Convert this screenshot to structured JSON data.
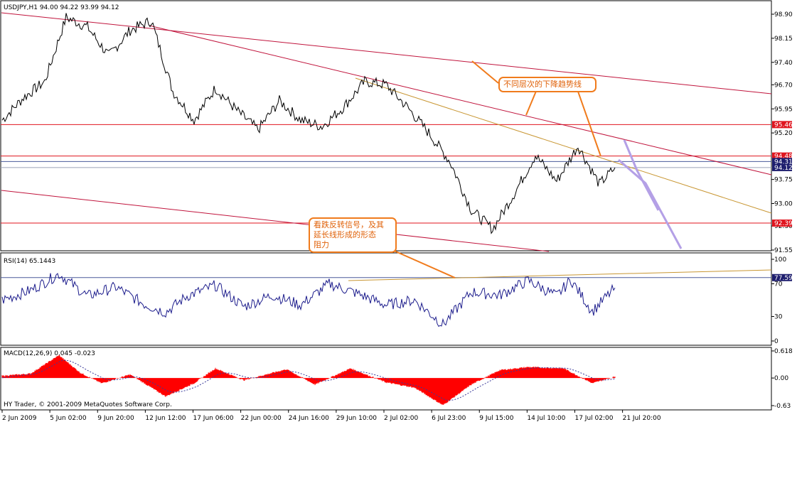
{
  "window": {
    "symbol_title": "USDJPY,H1  94.00 94.22 93.99 94.12",
    "copyright": "HY Trader, © 2001-2009 MetaQuotes Software Corp."
  },
  "annotations": {
    "downtrend_lines": "不同层次的下降趋势线",
    "reversal_signal_line1": "看跌反转信号，及其",
    "reversal_signal_line2": "延长线形成的形态",
    "reversal_signal_line3": "阻力"
  },
  "colors": {
    "price_line": "#000000",
    "trendline": "#c0143c",
    "trendline_tan": "#c89632",
    "horizontal_level": "#e0141e",
    "current_price_line": "#4a5a9a",
    "rsi_line": "#1c1c8c",
    "macd_hist": "#ff0000",
    "macd_signal": "#3a3a9a",
    "callout_orange": "#f07b1c",
    "projection_arrow": "#b4a0e6",
    "price_tag_red": "#e0141e",
    "price_tag_navy": "#1e1e6e"
  },
  "chart_data": [
    {
      "type": "line",
      "name": "price",
      "title": "USDJPY,H1",
      "ohlc_last": {
        "open": 94.0,
        "high": 94.22,
        "low": 93.99,
        "close": 94.12
      },
      "ylim": [
        91.55,
        98.9
      ],
      "y_ticks": [
        "98.90",
        "98.15",
        "97.40",
        "96.70",
        "95.95",
        "95.20",
        "93.75",
        "93.00",
        "92.30",
        "91.55"
      ],
      "x_ticks": [
        "2 Jun 2009",
        "5 Jun 02:00",
        "9 Jun 20:00",
        "12 Jun 12:00",
        "17 Jun 06:00",
        "22 Jun 00:00",
        "24 Jun 16:00",
        "29 Jun 10:00",
        "2 Jul 02:00",
        "6 Jul 23:00",
        "9 Jul 15:00",
        "14 Jul 10:00",
        "17 Jul 02:00",
        "21 Jul 20:00"
      ],
      "x": [
        0,
        30,
        60,
        90,
        120,
        150,
        180,
        210,
        240,
        270,
        300,
        330,
        360,
        390,
        420,
        450,
        480,
        510,
        540,
        570,
        600,
        630,
        660,
        690,
        720,
        750,
        780,
        810,
        840,
        862
      ],
      "values": [
        95.6,
        96.3,
        96.8,
        98.8,
        98.5,
        97.6,
        98.4,
        98.7,
        96.5,
        95.6,
        96.6,
        95.9,
        95.3,
        96.2,
        95.6,
        95.4,
        96.0,
        96.8,
        96.7,
        96.0,
        95.2,
        94.3,
        92.8,
        92.2,
        93.3,
        94.5,
        93.7,
        94.8,
        93.6,
        94.12
      ],
      "price_tags": [
        {
          "label": "95.46",
          "value": 95.46,
          "style": "level"
        },
        {
          "label": "94.48",
          "value": 94.48,
          "style": "level"
        },
        {
          "label": "94.31",
          "value": 94.31,
          "style": "current"
        },
        {
          "label": "94.12",
          "value": 94.12,
          "style": "bid"
        },
        {
          "label": "92.39",
          "value": 92.39,
          "style": "level"
        }
      ],
      "horizontal_levels": [
        95.46,
        94.48,
        92.39
      ]
    },
    {
      "type": "line",
      "name": "RSI",
      "label": "RSI(14) 65.1443",
      "ylim": [
        0,
        100
      ],
      "y_ticks": [
        "100",
        "70",
        "30",
        "0"
      ],
      "level_tag": "77.59",
      "level": 77.59,
      "x": [
        0,
        40,
        80,
        120,
        160,
        200,
        230,
        260,
        300,
        340,
        380,
        420,
        460,
        500,
        540,
        580,
        620,
        660,
        700,
        740,
        780,
        800,
        830,
        862
      ],
      "values": [
        50,
        62,
        82,
        55,
        66,
        45,
        35,
        55,
        68,
        42,
        56,
        44,
        70,
        58,
        44,
        50,
        20,
        60,
        56,
        74,
        55,
        75,
        36,
        65
      ]
    },
    {
      "type": "bar",
      "name": "MACD",
      "label": "MACD(12,26,9) 0.045 -0.023",
      "ylim": [
        -0.63,
        0.618
      ],
      "y_ticks": [
        "0.618",
        "0.00",
        "-0.63"
      ],
      "x": [
        0,
        40,
        80,
        110,
        140,
        180,
        230,
        270,
        300,
        340,
        400,
        440,
        490,
        540,
        580,
        620,
        660,
        700,
        740,
        790,
        830,
        862
      ],
      "values": [
        0.05,
        0.1,
        0.52,
        0.12,
        -0.12,
        0.08,
        -0.42,
        -0.12,
        0.22,
        -0.05,
        0.2,
        -0.15,
        0.22,
        -0.1,
        -0.22,
        -0.62,
        -0.15,
        0.18,
        0.25,
        0.22,
        -0.12,
        0.03
      ]
    }
  ]
}
